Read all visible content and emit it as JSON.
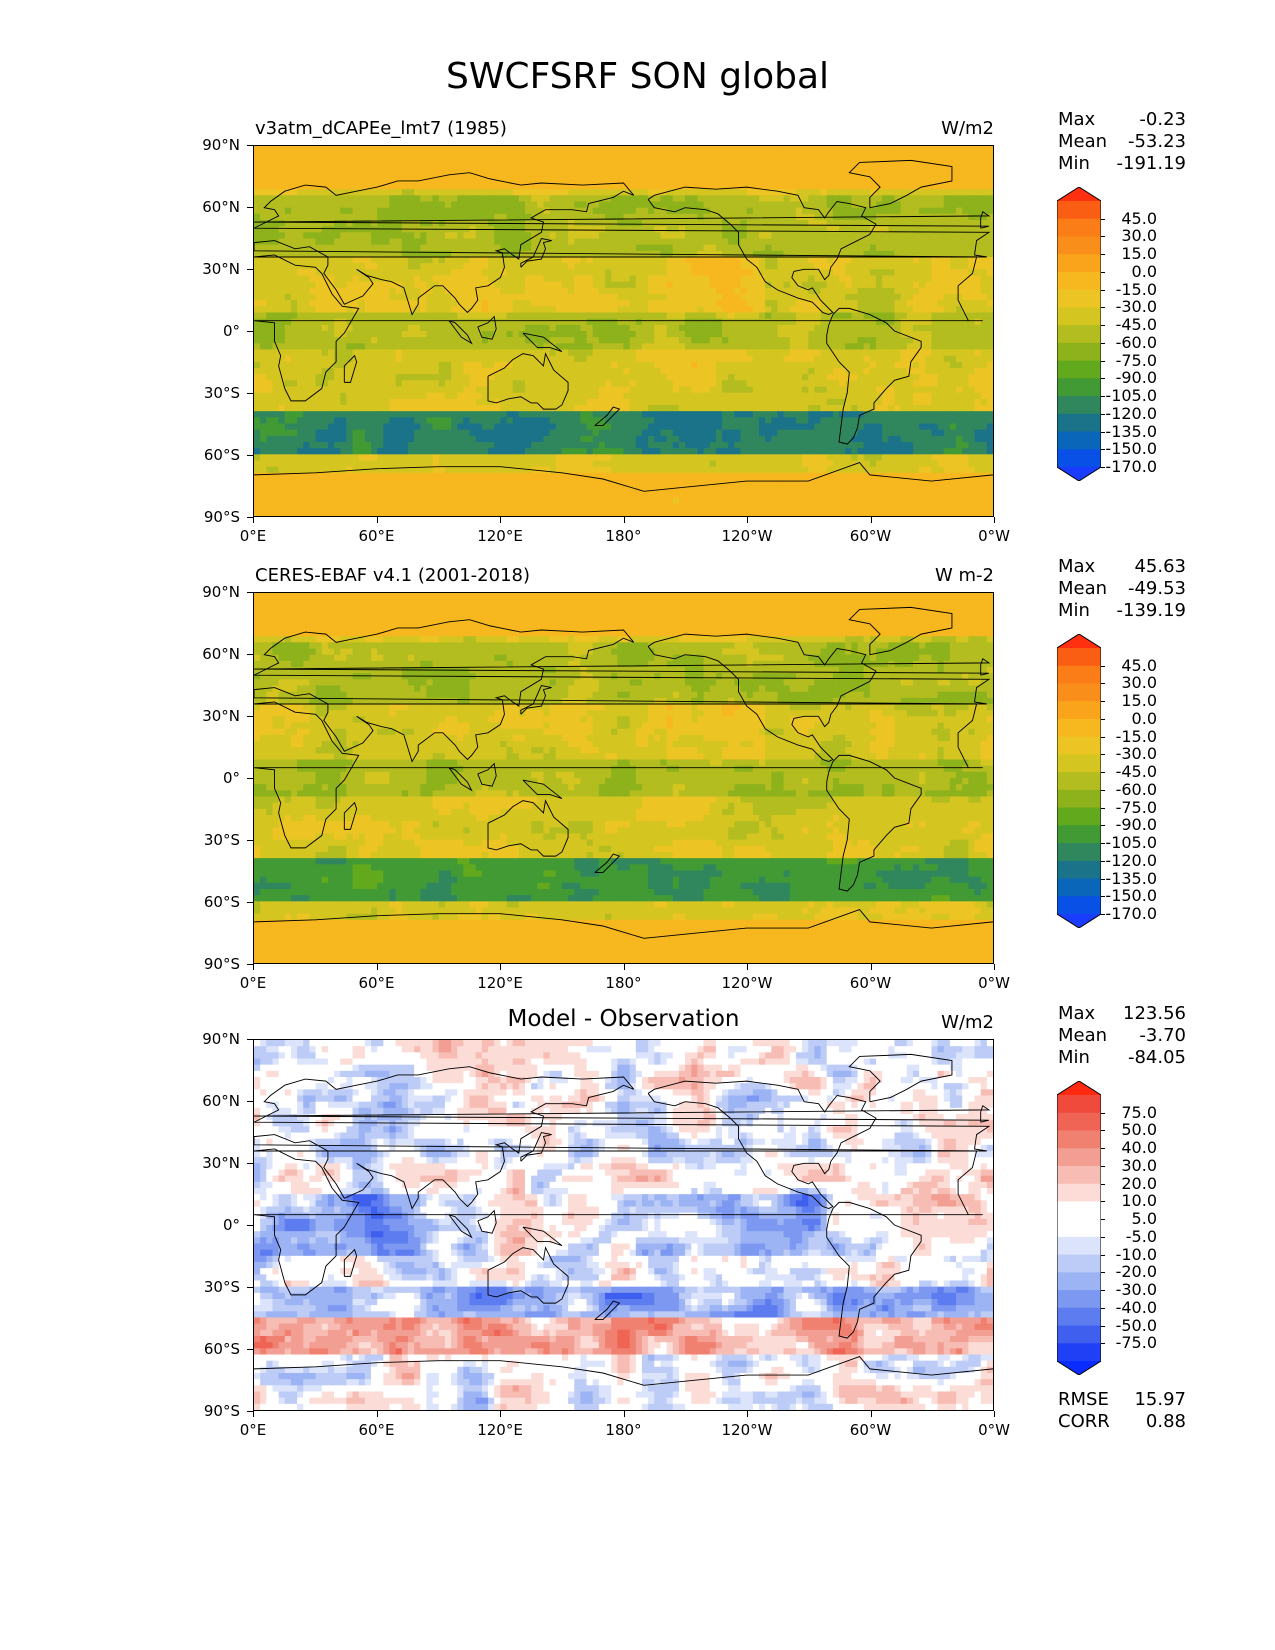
{
  "figure": {
    "title": "SWCFSRF SON global"
  },
  "axes": {
    "lat_labels": [
      "90°N",
      "60°N",
      "30°N",
      "0°",
      "30°S",
      "60°S",
      "90°S"
    ],
    "lon_labels": [
      "0°E",
      "60°E",
      "120°E",
      "180°",
      "120°W",
      "60°W",
      "0°W"
    ]
  },
  "panels": [
    {
      "title_left": "v3atm_dCAPEe_lmt7 (1985)",
      "title_center": "",
      "units": "W/m2",
      "stats": [
        {
          "label": "Max",
          "value": "-0.23"
        },
        {
          "label": "Mean",
          "value": "-53.23"
        },
        {
          "label": "Min",
          "value": "-191.19"
        }
      ],
      "colorbar": {
        "labels": [
          "45.0",
          "30.0",
          "15.0",
          "0.0",
          "-15.0",
          "-30.0",
          "-45.0",
          "-60.0",
          "-75.0",
          "-90.0",
          "-105.0",
          "-120.0",
          "-135.0",
          "-150.0",
          "-170.0"
        ],
        "colors": [
          "#ff3010",
          "#fa5e12",
          "#fa7d18",
          "#f98f1a",
          "#faa41c",
          "#f7b71e",
          "#ecc524",
          "#d5c521",
          "#b3bd1f",
          "#8db21b",
          "#62a91d",
          "#429a35",
          "#30875e",
          "#1a7388",
          "#0a66b8",
          "#0850e6",
          "#1a3cff"
        ]
      }
    },
    {
      "title_left": "CERES-EBAF v4.1 (2001-2018)",
      "title_center": "",
      "units": "W m-2",
      "stats": [
        {
          "label": "Max",
          "value": "45.63"
        },
        {
          "label": "Mean",
          "value": "-49.53"
        },
        {
          "label": "Min",
          "value": "-139.19"
        }
      ],
      "colorbar": {
        "labels": [
          "45.0",
          "30.0",
          "15.0",
          "0.0",
          "-15.0",
          "-30.0",
          "-45.0",
          "-60.0",
          "-75.0",
          "-90.0",
          "-105.0",
          "-120.0",
          "-135.0",
          "-150.0",
          "-170.0"
        ],
        "colors": [
          "#ff3010",
          "#fa5e12",
          "#fa7d18",
          "#f98f1a",
          "#faa41c",
          "#f7b71e",
          "#ecc524",
          "#d5c521",
          "#b3bd1f",
          "#8db21b",
          "#62a91d",
          "#429a35",
          "#30875e",
          "#1a7388",
          "#0a66b8",
          "#0850e6",
          "#1a3cff"
        ]
      }
    },
    {
      "title_left": "",
      "title_center": "Model - Observation",
      "units": "W/m2",
      "stats": [
        {
          "label": "Max",
          "value": "123.56"
        },
        {
          "label": "Mean",
          "value": "-3.70"
        },
        {
          "label": "Min",
          "value": "-84.05"
        }
      ],
      "extra_stats": [
        {
          "label": "RMSE",
          "value": "15.97"
        },
        {
          "label": "CORR",
          "value": "0.88"
        }
      ],
      "colorbar": {
        "labels": [
          "75.0",
          "50.0",
          "40.0",
          "30.0",
          "20.0",
          "10.0",
          "5.0",
          "-5.0",
          "-10.0",
          "-20.0",
          "-30.0",
          "-40.0",
          "-50.0",
          "-75.0"
        ],
        "colors": [
          "#ff2a10",
          "#f04a3c",
          "#ef6455",
          "#f08070",
          "#f39e92",
          "#f7bcb3",
          "#fbdcd6",
          "#ffffff",
          "#ffffff",
          "#dce4fb",
          "#bcccf7",
          "#9cb3f4",
          "#7c98f1",
          "#5d7cef",
          "#3f60ef",
          "#2040f5",
          "#0a2cff"
        ]
      }
    }
  ]
}
